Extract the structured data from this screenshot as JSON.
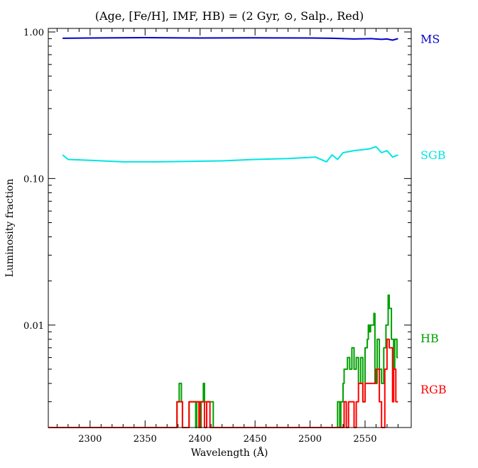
{
  "chart_data": {
    "type": "line",
    "title": "(Age, [Fe/H], IMF, HB) = (2 Gyr, ⊙, Salp., Red)",
    "xlabel": "Wavelength (Å)",
    "ylabel": "Luminosity fraction",
    "xlim": [
      2262,
      2592
    ],
    "ylim": [
      0.002,
      1.0
    ],
    "yscale": "log",
    "grid": false,
    "x_ticks": [
      "2300",
      "2350",
      "2400",
      "2450",
      "2500",
      "2550"
    ],
    "y_ticks": [
      "0.01",
      "0.10",
      "1.00"
    ],
    "legend": "right-side labels",
    "series": [
      {
        "name": "MS",
        "color": "#0000cc",
        "x": [
          2275,
          2300,
          2350,
          2400,
          2450,
          2500,
          2520,
          2540,
          2555,
          2565,
          2570,
          2575,
          2580
        ],
        "y": [
          0.905,
          0.91,
          0.915,
          0.91,
          0.912,
          0.91,
          0.905,
          0.895,
          0.9,
          0.89,
          0.895,
          0.88,
          0.9
        ]
      },
      {
        "name": "SGB",
        "color": "#00e5e5",
        "x": [
          2275,
          2280,
          2300,
          2330,
          2360,
          2390,
          2420,
          2450,
          2480,
          2505,
          2515,
          2520,
          2525,
          2530,
          2540,
          2550,
          2555,
          2560,
          2565,
          2570,
          2575,
          2580
        ],
        "y": [
          0.145,
          0.135,
          0.133,
          0.13,
          0.13,
          0.131,
          0.132,
          0.135,
          0.137,
          0.14,
          0.13,
          0.145,
          0.135,
          0.15,
          0.155,
          0.158,
          0.16,
          0.165,
          0.15,
          0.155,
          0.14,
          0.145
        ]
      },
      {
        "name": "HB",
        "color": "#00a000",
        "x": [
          2262,
          2378,
          2379,
          2381,
          2383,
          2384,
          2389,
          2390,
          2396,
          2397,
          2399,
          2400,
          2401,
          2403,
          2404,
          2406,
          2407,
          2409,
          2411,
          2412,
          2524,
          2525,
          2527,
          2528,
          2530,
          2531,
          2534,
          2536,
          2538,
          2540,
          2542,
          2544,
          2546,
          2548,
          2550,
          2552,
          2553,
          2554,
          2555,
          2557,
          2558,
          2559,
          2561,
          2563,
          2565,
          2567,
          2569,
          2571,
          2572,
          2574,
          2576,
          2577,
          2579,
          2580
        ],
        "y": [
          0.002,
          0.002,
          0.003,
          0.004,
          0.003,
          0.002,
          0.002,
          0.003,
          0.002,
          0.003,
          0.003,
          0.002,
          0.003,
          0.004,
          0.003,
          0.003,
          0.003,
          0.003,
          0.003,
          0.002,
          0.002,
          0.003,
          0.002,
          0.003,
          0.004,
          0.005,
          0.006,
          0.005,
          0.007,
          0.005,
          0.006,
          0.004,
          0.006,
          0.003,
          0.007,
          0.008,
          0.01,
          0.009,
          0.01,
          0.01,
          0.012,
          0.004,
          0.008,
          0.005,
          0.004,
          0.007,
          0.01,
          0.016,
          0.013,
          0.008,
          0.005,
          0.008,
          0.006,
          0.006
        ]
      },
      {
        "name": "RGB",
        "color": "#ff0000",
        "x": [
          2262,
          2378,
          2379,
          2381,
          2383,
          2384,
          2389,
          2390,
          2399,
          2400,
          2401,
          2403,
          2404,
          2406,
          2408,
          2409,
          2524,
          2530,
          2531,
          2533,
          2535,
          2536,
          2540,
          2542,
          2544,
          2545,
          2548,
          2550,
          2554,
          2555,
          2560,
          2563,
          2565,
          2568,
          2570,
          2572,
          2575,
          2576,
          2578,
          2580
        ],
        "y": [
          0.002,
          0.002,
          0.003,
          0.003,
          0.003,
          0.002,
          0.002,
          0.003,
          0.002,
          0.003,
          0.003,
          0.003,
          0.002,
          0.003,
          0.003,
          0.002,
          0.002,
          0.002,
          0.003,
          0.002,
          0.003,
          0.003,
          0.002,
          0.003,
          0.004,
          0.004,
          0.003,
          0.004,
          0.004,
          0.004,
          0.005,
          0.003,
          0.002,
          0.005,
          0.008,
          0.007,
          0.003,
          0.005,
          0.003,
          0.003
        ]
      }
    ]
  }
}
